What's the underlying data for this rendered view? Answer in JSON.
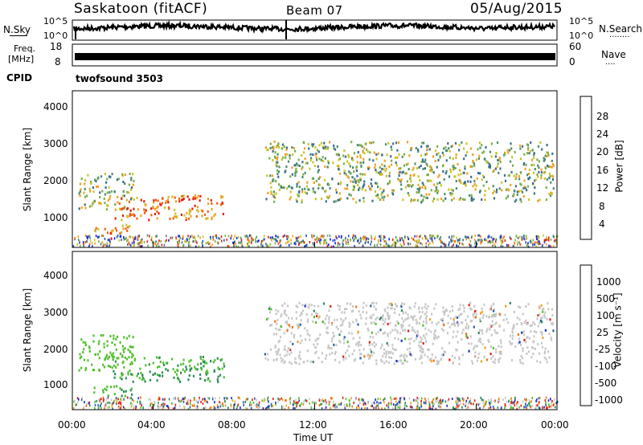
{
  "header": {
    "station": "Saskatoon (fitACF)",
    "beam": "Beam 07",
    "date": "05/Aug/2015"
  },
  "noise_panel": {
    "left_label": "N.Sky",
    "right_label": "N.Search",
    "right_dots": "........",
    "ticks_left": [
      "10^5",
      "10^0"
    ],
    "ticks_right": [
      "10^5",
      "10^0"
    ]
  },
  "freq_panel": {
    "left_label_1": "Freq.",
    "left_label_2": "[MHz]",
    "right_label": "Nave",
    "right_dots": "....",
    "ticks_left": [
      "18",
      "8"
    ],
    "ticks_right": [
      "60",
      "0"
    ]
  },
  "cpid_panel": {
    "left_label": "CPID",
    "program": "twofsound 3503"
  },
  "chart_data": [
    {
      "type": "heatmap",
      "title": "Power",
      "ylabel": "Slant Range [km]",
      "xlabel": "",
      "ylim": [
        200,
        4600
      ],
      "yticks": [
        "1000",
        "2000",
        "3000",
        "4000"
      ],
      "xlim_hours": [
        0,
        24
      ],
      "colorbar": {
        "label": "Power [dB]",
        "range": [
          0,
          32
        ],
        "ticks": [
          "4",
          "8",
          "12",
          "16",
          "20",
          "24",
          "28"
        ],
        "colors": [
          "#1020e0",
          "#2a4fb8",
          "#3a6e8a",
          "#4e8e6e",
          "#7ab04a",
          "#c8c42a",
          "#f0a020",
          "#f06010",
          "#e02010"
        ]
      },
      "bands_description": [
        {
          "t_start": 0.3,
          "t_end": 3.0,
          "range_min": 1300,
          "range_max": 2300,
          "level": "medium"
        },
        {
          "t_start": 2.0,
          "t_end": 7.5,
          "range_min": 1000,
          "range_max": 1700,
          "level": "high"
        },
        {
          "t_start": 1.0,
          "t_end": 3.0,
          "range_min": 600,
          "range_max": 900,
          "level": "high"
        },
        {
          "t_start": 9.5,
          "t_end": 23.8,
          "range_min": 1500,
          "range_max": 3200,
          "level": "medium"
        }
      ]
    },
    {
      "type": "heatmap",
      "title": "Velocity",
      "ylabel": "Slant Range [km]",
      "xlabel": "Time UT",
      "ylim": [
        200,
        4600
      ],
      "yticks": [
        "1000",
        "2000",
        "3000",
        "4000"
      ],
      "xticks": [
        "00:00",
        "04:00",
        "08:00",
        "12:00",
        "16:00",
        "20:00",
        "00:00"
      ],
      "colorbar": {
        "label": "Velocity [m s⁻¹]",
        "ticks": [
          "1000",
          "500",
          "100",
          "25",
          "-25",
          "-100",
          "-500",
          "-1000"
        ],
        "colors": [
          "#1830c0",
          "#2860a8",
          "#2e8a5a",
          "#52c030",
          "#c8c8c8",
          "#c8c8c8",
          "#f0a020",
          "#f07010",
          "#e02010"
        ]
      }
    }
  ]
}
